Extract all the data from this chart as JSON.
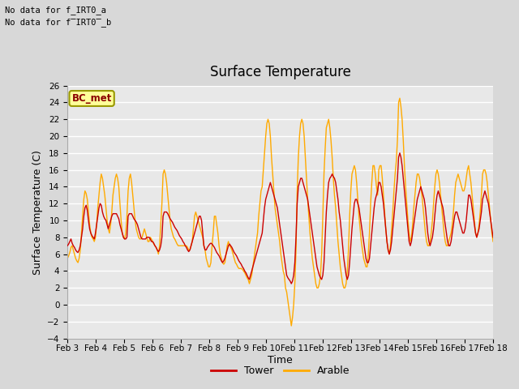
{
  "title": "Surface Temperature",
  "xlabel": "Time",
  "ylabel": "Surface Temperature (C)",
  "ylim": [
    -4,
    26
  ],
  "xlim": [
    0,
    360
  ],
  "tick_labels": [
    "Feb 3",
    "Feb 4",
    "Feb 5",
    "Feb 6",
    "Feb 7",
    "Feb 8",
    "Feb 9",
    "Feb 10",
    "Feb 11",
    "Feb 12",
    "Feb 13",
    "Feb 14",
    "Feb 15",
    "Feb 16",
    "Feb 17",
    "Feb 18"
  ],
  "tick_positions": [
    0,
    24,
    48,
    72,
    96,
    120,
    144,
    168,
    192,
    216,
    240,
    264,
    288,
    312,
    336,
    360
  ],
  "no_data_text1": "No data for f_IRT0_a",
  "no_data_text2": "No data for f̅IRT0̅_b",
  "bc_met_label": "BC_met",
  "legend_labels": [
    "Tower",
    "Arable"
  ],
  "line_colors": [
    "#cc0000",
    "#ffaa00"
  ],
  "background_color": "#d8d8d8",
  "plot_bg_color": "#e8e8e8",
  "grid_color": "#ffffff",
  "title_fontsize": 12,
  "axis_fontsize": 9,
  "tick_fontsize": 7.5,
  "tower_data": [
    7.0,
    7.2,
    7.5,
    7.8,
    7.3,
    7.0,
    6.8,
    6.5,
    6.3,
    6.2,
    6.5,
    7.0,
    8.0,
    9.0,
    10.5,
    11.5,
    11.8,
    11.2,
    10.0,
    9.0,
    8.5,
    8.2,
    8.0,
    7.8,
    8.5,
    9.5,
    10.5,
    11.5,
    12.0,
    11.8,
    11.0,
    10.5,
    10.2,
    10.0,
    9.5,
    9.0,
    9.5,
    10.0,
    10.5,
    10.8,
    10.8,
    10.8,
    10.8,
    10.5,
    10.2,
    9.5,
    9.0,
    8.5,
    8.0,
    7.8,
    7.8,
    8.0,
    10.5,
    10.8,
    10.8,
    10.8,
    10.5,
    10.2,
    10.0,
    9.8,
    9.5,
    9.0,
    8.5,
    8.0,
    7.8,
    7.8,
    7.8,
    7.8,
    8.0,
    8.0,
    8.0,
    7.8,
    7.5,
    7.5,
    7.3,
    7.0,
    6.8,
    6.5,
    6.3,
    6.5,
    7.0,
    8.0,
    10.5,
    11.0,
    11.0,
    11.0,
    10.8,
    10.5,
    10.2,
    10.0,
    9.8,
    9.5,
    9.2,
    9.0,
    8.8,
    8.5,
    8.2,
    8.0,
    7.8,
    7.5,
    7.3,
    7.0,
    6.8,
    6.5,
    6.3,
    6.5,
    7.0,
    7.5,
    8.0,
    8.5,
    9.0,
    9.5,
    10.0,
    10.5,
    10.5,
    10.0,
    8.5,
    7.0,
    6.5,
    6.5,
    6.8,
    7.0,
    7.2,
    7.3,
    7.2,
    7.0,
    6.8,
    6.5,
    6.2,
    6.0,
    5.8,
    5.5,
    5.2,
    5.0,
    5.2,
    5.5,
    6.0,
    6.5,
    7.0,
    7.2,
    7.0,
    6.8,
    6.5,
    6.2,
    6.0,
    5.8,
    5.5,
    5.2,
    5.0,
    4.8,
    4.5,
    4.3,
    4.0,
    3.8,
    3.5,
    3.2,
    3.0,
    3.5,
    4.0,
    4.5,
    5.0,
    5.5,
    6.0,
    6.5,
    7.0,
    7.5,
    8.0,
    8.5,
    10.0,
    11.5,
    12.5,
    13.0,
    13.5,
    14.0,
    14.5,
    14.0,
    13.5,
    13.0,
    12.5,
    12.0,
    11.5,
    10.5,
    9.5,
    8.5,
    7.5,
    6.5,
    5.5,
    4.5,
    3.5,
    3.2,
    3.0,
    2.8,
    2.5,
    2.8,
    3.5,
    5.0,
    8.0,
    12.0,
    14.0,
    14.5,
    15.0,
    15.0,
    14.5,
    14.0,
    13.5,
    13.0,
    12.5,
    11.5,
    10.5,
    9.5,
    8.5,
    7.5,
    6.5,
    5.5,
    4.5,
    4.0,
    3.5,
    3.2,
    3.0,
    3.5,
    5.0,
    8.0,
    11.0,
    13.0,
    14.5,
    15.0,
    15.2,
    15.5,
    15.2,
    15.0,
    14.5,
    13.5,
    12.5,
    11.0,
    10.0,
    8.5,
    7.0,
    5.5,
    4.5,
    3.5,
    3.0,
    3.5,
    5.0,
    7.0,
    9.0,
    10.5,
    12.0,
    12.5,
    12.5,
    12.0,
    11.5,
    10.5,
    9.5,
    8.5,
    7.5,
    6.5,
    5.5,
    5.0,
    5.0,
    5.5,
    7.0,
    8.5,
    10.0,
    11.5,
    12.5,
    13.0,
    13.5,
    14.5,
    14.5,
    14.0,
    13.0,
    12.0,
    10.5,
    9.0,
    7.5,
    6.5,
    6.0,
    6.5,
    7.5,
    9.0,
    10.5,
    12.0,
    13.5,
    15.0,
    17.5,
    18.0,
    17.5,
    16.5,
    15.0,
    13.5,
    12.0,
    10.5,
    9.0,
    7.5,
    7.0,
    7.5,
    8.5,
    9.5,
    10.5,
    11.5,
    12.5,
    13.0,
    13.5,
    14.0,
    13.5,
    13.0,
    12.5,
    11.5,
    10.0,
    8.5,
    7.5,
    7.0,
    7.5,
    8.0,
    9.0,
    10.5,
    12.0,
    13.0,
    13.5,
    13.0,
    12.5,
    12.0,
    11.5,
    10.5,
    9.5,
    8.5,
    7.5,
    7.0,
    7.0,
    7.5,
    8.5,
    9.5,
    10.5,
    11.0,
    11.0,
    10.5,
    10.0,
    9.5,
    9.0,
    8.5,
    8.5,
    9.0,
    10.0,
    11.5,
    13.0,
    13.0,
    12.5,
    11.5,
    10.5,
    9.5,
    8.5,
    8.0,
    8.5,
    9.0,
    10.0,
    11.0,
    12.5,
    13.0,
    13.5,
    13.0,
    12.5,
    12.0,
    11.0,
    10.0,
    9.0,
    8.0
  ],
  "arable_data": [
    5.5,
    5.8,
    6.2,
    6.8,
    7.0,
    6.5,
    6.0,
    5.5,
    5.2,
    5.0,
    5.5,
    6.5,
    8.5,
    10.5,
    12.5,
    13.5,
    13.2,
    12.5,
    11.0,
    9.5,
    8.5,
    8.0,
    7.8,
    7.5,
    8.0,
    9.5,
    11.5,
    13.0,
    14.5,
    15.5,
    15.0,
    14.0,
    13.0,
    11.5,
    10.0,
    9.0,
    8.5,
    9.5,
    11.0,
    13.0,
    14.0,
    15.0,
    15.5,
    15.0,
    14.0,
    12.0,
    10.0,
    8.5,
    8.0,
    7.8,
    8.5,
    10.5,
    13.5,
    15.0,
    15.5,
    14.5,
    13.0,
    11.5,
    10.0,
    9.0,
    8.5,
    8.0,
    7.8,
    7.8,
    8.0,
    8.5,
    9.0,
    8.5,
    8.0,
    7.5,
    7.5,
    8.0,
    7.8,
    7.5,
    7.2,
    7.0,
    6.8,
    6.5,
    6.0,
    7.0,
    9.5,
    12.0,
    15.5,
    16.0,
    15.5,
    14.5,
    13.0,
    11.5,
    10.0,
    9.0,
    8.5,
    8.0,
    7.8,
    7.5,
    7.2,
    7.0,
    7.0,
    7.0,
    7.0,
    7.0,
    7.0,
    7.0,
    7.0,
    6.8,
    6.5,
    6.5,
    7.0,
    7.5,
    9.0,
    10.5,
    11.0,
    10.5,
    10.0,
    9.5,
    9.0,
    8.5,
    8.0,
    7.0,
    6.5,
    5.5,
    5.0,
    4.5,
    4.5,
    5.0,
    7.0,
    8.5,
    10.5,
    10.5,
    9.5,
    8.5,
    7.0,
    6.0,
    5.5,
    5.0,
    4.8,
    5.0,
    6.0,
    7.0,
    7.5,
    7.0,
    6.8,
    6.5,
    6.0,
    5.5,
    5.0,
    4.8,
    4.5,
    4.3,
    4.3,
    4.3,
    4.2,
    4.0,
    3.8,
    3.5,
    3.2,
    3.0,
    2.5,
    3.0,
    3.5,
    4.5,
    5.5,
    6.5,
    7.5,
    8.5,
    10.5,
    12.0,
    13.5,
    14.0,
    16.0,
    18.0,
    20.0,
    21.5,
    22.0,
    21.5,
    20.0,
    17.5,
    15.5,
    13.5,
    11.5,
    10.5,
    9.5,
    8.5,
    7.5,
    6.0,
    5.0,
    4.0,
    3.5,
    2.0,
    1.5,
    0.5,
    -0.5,
    -1.5,
    -2.5,
    -1.5,
    0.0,
    2.5,
    6.5,
    13.5,
    17.5,
    20.0,
    21.5,
    22.0,
    21.5,
    20.0,
    17.5,
    15.0,
    12.5,
    10.5,
    8.5,
    7.0,
    5.5,
    4.5,
    3.5,
    2.5,
    2.0,
    2.0,
    2.5,
    3.5,
    6.0,
    10.5,
    15.5,
    18.5,
    21.0,
    21.5,
    22.0,
    21.0,
    19.5,
    17.5,
    15.0,
    13.0,
    11.5,
    9.5,
    7.5,
    6.0,
    4.5,
    3.5,
    2.5,
    2.0,
    2.0,
    2.5,
    4.0,
    6.5,
    10.5,
    13.5,
    15.5,
    16.0,
    16.5,
    16.0,
    14.5,
    12.5,
    10.5,
    9.0,
    7.5,
    6.5,
    5.5,
    5.0,
    4.5,
    4.5,
    6.0,
    8.5,
    12.0,
    14.5,
    16.5,
    16.5,
    15.5,
    14.0,
    13.0,
    16.0,
    16.5,
    16.5,
    15.0,
    13.0,
    11.0,
    9.0,
    7.5,
    6.5,
    6.0,
    7.0,
    9.0,
    11.0,
    13.5,
    15.5,
    17.0,
    19.5,
    24.0,
    24.5,
    23.5,
    22.0,
    19.5,
    16.5,
    14.0,
    12.0,
    10.0,
    8.5,
    7.5,
    8.0,
    9.5,
    11.5,
    13.0,
    14.5,
    15.5,
    15.5,
    15.0,
    14.0,
    13.0,
    11.5,
    10.0,
    8.5,
    7.5,
    7.0,
    7.0,
    7.5,
    8.5,
    10.0,
    12.0,
    14.0,
    15.5,
    16.0,
    15.5,
    14.5,
    13.0,
    11.5,
    10.0,
    8.5,
    7.5,
    7.0,
    7.0,
    7.5,
    8.0,
    8.5,
    9.5,
    11.0,
    13.0,
    14.5,
    15.0,
    15.5,
    15.0,
    14.5,
    14.0,
    13.5,
    13.5,
    14.0,
    15.0,
    16.0,
    16.5,
    15.5,
    14.5,
    13.0,
    11.5,
    10.0,
    8.5,
    8.0,
    8.5,
    9.5,
    11.0,
    13.0,
    15.5,
    16.0,
    16.0,
    15.5,
    14.5,
    13.0,
    11.5,
    10.0,
    8.5,
    7.5
  ]
}
